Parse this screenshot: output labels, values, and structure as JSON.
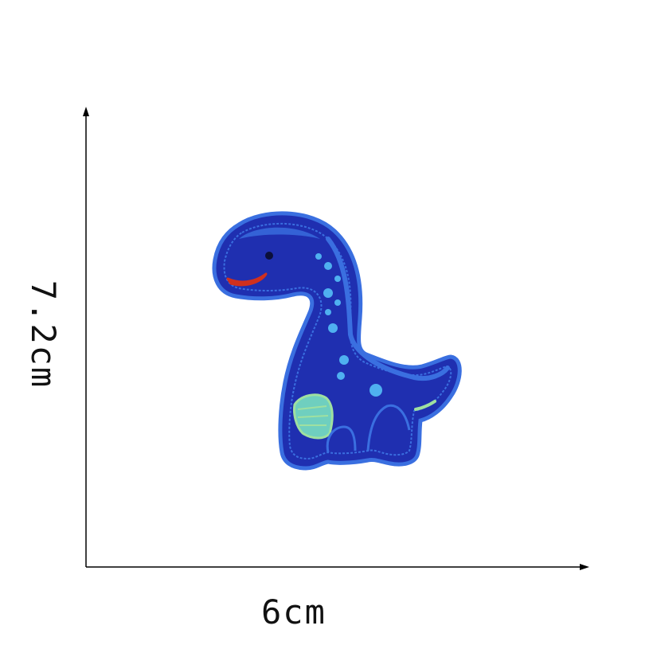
{
  "dimensions": {
    "width_label": "6cm",
    "height_label": "7.2cm"
  },
  "patch": {
    "icon": "dinosaur-patch-icon",
    "colors": {
      "body": "#1f2fb0",
      "outline": "#3a6fe0",
      "spots": "#4fb0f0",
      "mouth": "#d0301e",
      "accent": "#9fe0a0"
    }
  },
  "axis_color": "#000000"
}
